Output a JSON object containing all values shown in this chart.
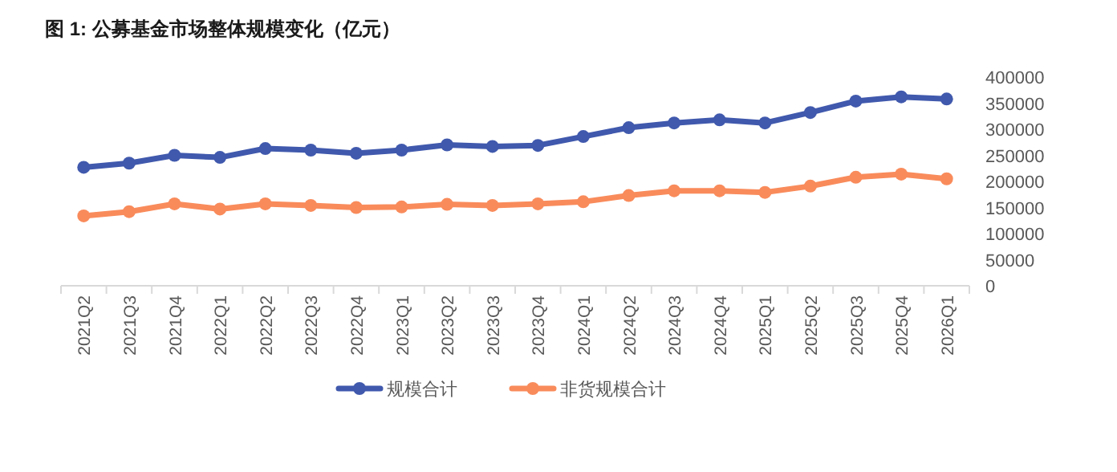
{
  "chart_data": {
    "type": "line",
    "title": "图 1: 公募基金市场整体规模变化（亿元）",
    "categories": [
      "2021Q2",
      "2021Q3",
      "2021Q4",
      "2022Q1",
      "2022Q2",
      "2022Q3",
      "2022Q4",
      "2023Q1",
      "2023Q2",
      "2023Q3",
      "2023Q4",
      "2024Q1",
      "2024Q2",
      "2024Q3",
      "2024Q4",
      "2025Q1",
      "2025Q2",
      "2025Q3",
      "2025Q4",
      "2026Q1"
    ],
    "series": [
      {
        "name": "规模合计",
        "color": "#4059ad",
        "values": [
          227000,
          235000,
          250000,
          246000,
          263000,
          260000,
          254000,
          260000,
          270000,
          267000,
          269000,
          286000,
          303000,
          312000,
          318000,
          312000,
          332000,
          354000,
          362000,
          358000
        ]
      },
      {
        "name": "非货规模合计",
        "color": "#f98b5b",
        "values": [
          134000,
          142000,
          157000,
          147000,
          157000,
          154000,
          150000,
          151000,
          156000,
          154000,
          157000,
          161000,
          173000,
          182000,
          182000,
          179000,
          191000,
          208000,
          214000,
          205000
        ]
      }
    ],
    "ylim": [
      0,
      400000
    ],
    "yticks": [
      0,
      50000,
      100000,
      150000,
      200000,
      250000,
      300000,
      350000,
      400000
    ],
    "grid": false,
    "legend": "bottom",
    "marker": "circle",
    "line_style": "solid"
  }
}
